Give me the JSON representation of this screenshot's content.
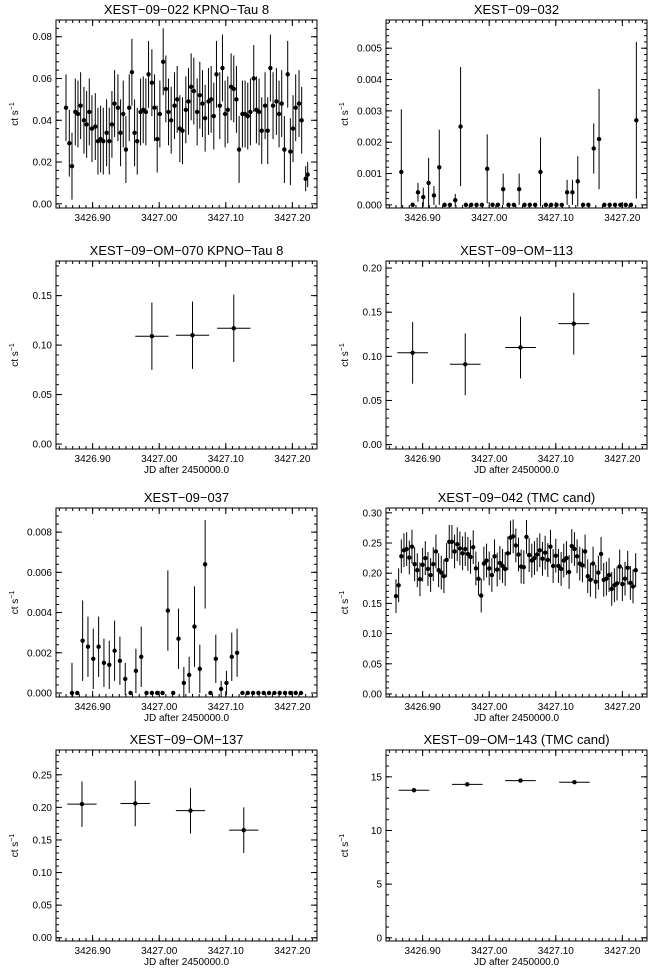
{
  "chart_data": [
    {
      "type": "scatter",
      "title": "XEST−09−022 KPNO−Tau 8",
      "ylabel": "ct s",
      "ylabel_sup": "−1",
      "xlabel": "",
      "xlim": [
        3426.845,
        3427.237
      ],
      "ylim": [
        -0.002,
        0.088
      ],
      "xticks": [
        3426.9,
        3427.0,
        3427.1,
        3427.2
      ],
      "xtick_labels": [
        "3426.90",
        "3427.00",
        "3427.10",
        "3427.20"
      ],
      "yticks": [
        0.0,
        0.02,
        0.04,
        0.06,
        0.08
      ],
      "ytick_labels": [
        "0.00",
        "0.02",
        "0.04",
        "0.06",
        "0.08"
      ],
      "series": [
        {
          "x": [
            3426.86,
            3426.865,
            3426.869,
            3426.874,
            3426.878,
            3426.882,
            3426.887,
            3426.891,
            3426.895,
            3426.899,
            3426.904,
            3426.908,
            3426.912,
            3426.916,
            3426.921,
            3426.925,
            3426.929,
            3426.933,
            3426.938,
            3426.942,
            3426.946,
            3426.95,
            3426.955,
            3426.959,
            3426.963,
            3426.967,
            3426.972,
            3426.976,
            3426.98,
            3426.984,
            3426.989,
            3426.993,
            3426.997,
            3427.001,
            3427.006,
            3427.01,
            3427.014,
            3427.018,
            3427.023,
            3427.027,
            3427.031,
            3427.035,
            3427.04,
            3427.044,
            3427.048,
            3427.052,
            3427.057,
            3427.061,
            3427.065,
            3427.069,
            3427.074,
            3427.078,
            3427.082,
            3427.086,
            3427.091,
            3427.095,
            3427.099,
            3427.103,
            3427.108,
            3427.112,
            3427.116,
            3427.12,
            3427.125,
            3427.129,
            3427.133,
            3427.137,
            3427.142,
            3427.146,
            3427.15,
            3427.154,
            3427.159,
            3427.163,
            3427.167,
            3427.171,
            3427.176,
            3427.18,
            3427.184,
            3427.188,
            3427.193,
            3427.197,
            3427.201,
            3427.205,
            3427.21,
            3427.214
          ],
          "y": [
            0.046,
            0.029,
            0.018,
            0.044,
            0.043,
            0.047,
            0.04,
            0.038,
            0.044,
            0.036,
            0.037,
            0.03,
            0.031,
            0.03,
            0.034,
            0.03,
            0.038,
            0.048,
            0.046,
            0.034,
            0.043,
            0.026,
            0.046,
            0.063,
            0.034,
            0.03,
            0.044,
            0.045,
            0.044,
            0.062,
            0.058,
            0.046,
            0.031,
            0.043,
            0.068,
            0.055,
            0.044,
            0.04,
            0.047,
            0.05,
            0.036,
            0.035,
            0.045,
            0.049,
            0.056,
            0.054,
            0.044,
            0.052,
            0.048,
            0.041,
            0.049,
            0.05,
            0.042,
            0.062,
            0.047,
            0.065,
            0.043,
            0.045,
            0.056,
            0.055,
            0.05,
            0.026,
            0.043,
            0.043,
            0.042,
            0.044,
            0.06,
            0.045,
            0.044,
            0.035,
            0.047,
            0.035,
            0.065,
            0.047,
            0.049,
            0.043,
            0.048,
            0.026,
            0.062,
            0.025,
            0.036,
            0.046,
            0.048,
            0.04
          ],
          "xerr": 0.002,
          "yerr": 0.016
        },
        {
          "x": [
            3427.22,
            3427.223
          ],
          "y": [
            0.012,
            0.014
          ],
          "xerr": 0.001,
          "yerr": 0.006
        }
      ]
    },
    {
      "type": "scatter",
      "title": "XEST−09−032",
      "ylabel": "ct s",
      "ylabel_sup": "−1",
      "xlabel": "",
      "xlim": [
        3426.845,
        3427.237
      ],
      "ylim": [
        -0.0001,
        0.0059
      ],
      "xticks": [
        3426.9,
        3427.0,
        3427.1,
        3427.2
      ],
      "xtick_labels": [
        "3426.90",
        "3427.00",
        "3427.10",
        "3427.20"
      ],
      "yticks": [
        0.0,
        0.001,
        0.002,
        0.003,
        0.004,
        0.005
      ],
      "ytick_labels": [
        "0.000",
        "0.001",
        "0.002",
        "0.003",
        "0.004",
        "0.005"
      ],
      "series": [
        {
          "x": [
            3426.868,
            3426.885,
            3426.893,
            3426.901,
            3426.909,
            3426.917,
            3426.925,
            3426.933,
            3426.941,
            3426.949,
            3426.957,
            3426.965,
            3426.973,
            3426.981,
            3426.989,
            3426.997,
            3427.005,
            3427.013,
            3427.021,
            3427.029,
            3427.037,
            3427.045,
            3427.053,
            3427.061,
            3427.069,
            3427.077,
            3427.085,
            3427.093,
            3427.101,
            3427.109,
            3427.117,
            3427.125,
            3427.133,
            3427.141,
            3427.149,
            3427.157,
            3427.165,
            3427.173,
            3427.181,
            3427.189,
            3427.197,
            3427.205,
            3427.213,
            3427.221
          ],
          "y": [
            0.00105,
            0.0,
            0.0004,
            0.00025,
            0.0007,
            0.0003,
            0.0012,
            0.0,
            0.0,
            0.00015,
            0.0025,
            0.0,
            0.0,
            0.0,
            0.0,
            0.00115,
            0.0,
            0.0,
            0.0005,
            0.0,
            0.0,
            0.0005,
            0.0,
            0.0,
            0.0,
            0.00105,
            0.0,
            0.0,
            0.0,
            0.0,
            0.0004,
            0.0004,
            0.00075,
            0.0,
            0.0,
            0.0018,
            0.0021,
            0.0,
            0.0,
            0.0,
            0.0,
            0.0,
            0.0,
            0.0027
          ],
          "xerr": 0.0,
          "yerr": [
            0.002,
            0,
            0.0003,
            0.0003,
            0.0008,
            0.0003,
            0.0012,
            0,
            0,
            0.0002,
            0.0019,
            0,
            0,
            0,
            0,
            0.0011,
            0,
            0,
            0.0005,
            0,
            0,
            0.0005,
            0,
            0,
            0,
            0.0011,
            0,
            0,
            0,
            0,
            0.0004,
            0.0004,
            0.0008,
            0,
            0,
            0.0008,
            0.0016,
            0,
            0,
            0,
            0,
            0,
            0,
            0.0025
          ]
        }
      ]
    },
    {
      "type": "scatter",
      "title": "XEST−09−OM−070 KPNO−Tau 8",
      "ylabel": "ct s",
      "ylabel_sup": "−1",
      "xlabel": "JD after 2450000.0",
      "xlim": [
        3426.845,
        3427.237
      ],
      "ylim": [
        -0.005,
        0.185
      ],
      "xticks": [
        3426.9,
        3427.0,
        3427.1,
        3427.2
      ],
      "xtick_labels": [
        "3426.90",
        "3427.00",
        "3427.10",
        "3427.20"
      ],
      "yticks": [
        0.0,
        0.05,
        0.1,
        0.15
      ],
      "ytick_labels": [
        "0.00",
        "0.05",
        "0.10",
        "0.15"
      ],
      "series": [
        {
          "x": [
            3426.989,
            3427.05,
            3427.112
          ],
          "y": [
            0.109,
            0.11,
            0.117
          ],
          "xerr": 0.025,
          "yerr": 0.034
        }
      ]
    },
    {
      "type": "scatter",
      "title": "XEST−09−OM−113",
      "ylabel": "ct s",
      "ylabel_sup": "−1",
      "xlabel": "JD after 2450000.0",
      "xlim": [
        3426.845,
        3427.237
      ],
      "ylim": [
        -0.005,
        0.208
      ],
      "xticks": [
        3426.9,
        3427.0,
        3427.1,
        3427.2
      ],
      "xtick_labels": [
        "3426.90",
        "3427.00",
        "3427.10",
        "3427.20"
      ],
      "yticks": [
        0.0,
        0.05,
        0.1,
        0.15,
        0.2
      ],
      "ytick_labels": [
        "0.00",
        "0.05",
        "0.10",
        "0.15",
        "0.20"
      ],
      "series": [
        {
          "x": [
            3426.885,
            3426.964,
            3427.047,
            3427.127
          ],
          "y": [
            0.104,
            0.091,
            0.11,
            0.137
          ],
          "xerr": 0.023,
          "yerr": 0.035
        }
      ]
    },
    {
      "type": "scatter",
      "title": "XEST−09−037",
      "ylabel": "ct s",
      "ylabel_sup": "−1",
      "xlabel": "JD after 2450000.0",
      "xlim": [
        3426.845,
        3427.237
      ],
      "ylim": [
        -0.0002,
        0.0092
      ],
      "xticks": [
        3426.9,
        3427.0,
        3427.1,
        3427.2
      ],
      "xtick_labels": [
        "3426.90",
        "3427.00",
        "3427.10",
        "3427.20"
      ],
      "yticks": [
        0.0,
        0.002,
        0.004,
        0.006,
        0.008
      ],
      "ytick_labels": [
        "0.000",
        "0.002",
        "0.004",
        "0.006",
        "0.008"
      ],
      "series": [
        {
          "x": [
            3426.869,
            3426.877,
            3426.885,
            3426.893,
            3426.901,
            3426.909,
            3426.917,
            3426.925,
            3426.933,
            3426.941,
            3426.949,
            3426.957,
            3426.965,
            3426.973,
            3426.981,
            3426.989,
            3426.997,
            3427.005,
            3427.013,
            3427.021,
            3427.029,
            3427.037,
            3427.045,
            3427.053,
            3427.061,
            3427.069,
            3427.077,
            3427.085,
            3427.093,
            3427.101,
            3427.109,
            3427.117,
            3427.125,
            3427.133,
            3427.141,
            3427.149,
            3427.157,
            3427.165,
            3427.173,
            3427.181,
            3427.189,
            3427.197,
            3427.205,
            3427.213
          ],
          "y": [
            0.0,
            0.0,
            0.0026,
            0.0023,
            0.0017,
            0.0023,
            0.0015,
            0.0014,
            0.0021,
            0.0016,
            0.0007,
            0.0,
            0.0011,
            0.0018,
            0.0,
            0.0,
            0.0,
            0.0,
            0.0041,
            0.0,
            0.0027,
            0.0005,
            0.0009,
            0.0033,
            0.0012,
            0.0064,
            0.0,
            0.0017,
            0.0002,
            0.0005,
            0.0018,
            0.002,
            0.0,
            0.0,
            0.0,
            0.0,
            0.0,
            0.0,
            0.0,
            0.0,
            0.0,
            0.0,
            0.0,
            0.0
          ],
          "xerr": 0.0,
          "yerr": [
            0.0015,
            0,
            0.002,
            0.0015,
            0.0015,
            0.0015,
            0.0012,
            0.0012,
            0.0015,
            0.0012,
            0.0008,
            0,
            0.0011,
            0.0015,
            0,
            0,
            0,
            0,
            0.002,
            0,
            0.0015,
            0.0008,
            0.0009,
            0.002,
            0.0012,
            0.0022,
            0,
            0.0012,
            0.0004,
            0.0006,
            0.0012,
            0.0012,
            0,
            0,
            0,
            0,
            0,
            0,
            0,
            0,
            0,
            0,
            0,
            0
          ]
        }
      ]
    },
    {
      "type": "scatter",
      "title": "XEST−09−042 (TMC cand)",
      "ylabel": "ct s",
      "ylabel_sup": "−1",
      "xlabel": "JD after 2450000.0",
      "xlim": [
        3426.845,
        3427.237
      ],
      "ylim": [
        -0.005,
        0.308
      ],
      "xticks": [
        3426.9,
        3427.0,
        3427.1,
        3427.2
      ],
      "xtick_labels": [
        "3426.90",
        "3427.00",
        "3427.10",
        "3427.20"
      ],
      "yticks": [
        0.0,
        0.05,
        0.1,
        0.15,
        0.2,
        0.25,
        0.3
      ],
      "ytick_labels": [
        "0.00",
        "0.05",
        "0.10",
        "0.15",
        "0.20",
        "0.25",
        "0.30"
      ],
      "series": [
        {
          "x": [
            3426.86,
            3426.864,
            3426.868,
            3426.872,
            3426.876,
            3426.88,
            3426.884,
            3426.888,
            3426.892,
            3426.896,
            3426.9,
            3426.904,
            3426.908,
            3426.912,
            3426.916,
            3426.92,
            3426.924,
            3426.928,
            3426.932,
            3426.936,
            3426.94,
            3426.944,
            3426.948,
            3426.952,
            3426.956,
            3426.96,
            3426.964,
            3426.968,
            3426.972,
            3426.976,
            3426.98,
            3426.984,
            3426.988,
            3426.992,
            3426.996,
            3427.0,
            3427.004,
            3427.008,
            3427.012,
            3427.016,
            3427.02,
            3427.024,
            3427.028,
            3427.032,
            3427.036,
            3427.04,
            3427.044,
            3427.048,
            3427.052,
            3427.056,
            3427.06,
            3427.064,
            3427.068,
            3427.072,
            3427.076,
            3427.08,
            3427.084,
            3427.088,
            3427.092,
            3427.096,
            3427.1,
            3427.104,
            3427.108,
            3427.112,
            3427.116,
            3427.12,
            3427.124,
            3427.128,
            3427.132,
            3427.136,
            3427.14,
            3427.144,
            3427.148,
            3427.152,
            3427.156,
            3427.16,
            3427.164,
            3427.168,
            3427.172,
            3427.176,
            3427.18,
            3427.184,
            3427.188,
            3427.192,
            3427.196,
            3427.2,
            3427.204,
            3427.208,
            3427.212,
            3427.216,
            3427.22
          ],
          "y": [
            0.162,
            0.18,
            0.228,
            0.238,
            0.24,
            0.226,
            0.244,
            0.215,
            0.205,
            0.19,
            0.214,
            0.225,
            0.207,
            0.197,
            0.215,
            0.236,
            0.205,
            0.201,
            0.195,
            0.222,
            0.252,
            0.252,
            0.236,
            0.248,
            0.241,
            0.233,
            0.24,
            0.232,
            0.227,
            0.243,
            0.208,
            0.191,
            0.163,
            0.216,
            0.221,
            0.208,
            0.197,
            0.228,
            0.206,
            0.217,
            0.212,
            0.207,
            0.233,
            0.259,
            0.261,
            0.246,
            0.231,
            0.211,
            0.21,
            0.26,
            0.23,
            0.221,
            0.225,
            0.231,
            0.238,
            0.224,
            0.234,
            0.222,
            0.244,
            0.212,
            0.229,
            0.212,
            0.207,
            0.221,
            0.225,
            0.202,
            0.245,
            0.24,
            0.228,
            0.216,
            0.213,
            0.236,
            0.195,
            0.189,
            0.216,
            0.186,
            0.201,
            0.232,
            0.189,
            0.191,
            0.197,
            0.174,
            0.18,
            0.183,
            0.211,
            0.182,
            0.191,
            0.209,
            0.184,
            0.178,
            0.205
          ],
          "xerr": 0.0015,
          "yerr": 0.028
        }
      ]
    },
    {
      "type": "scatter",
      "title": "XEST−09−OM−137",
      "ylabel": "ct s",
      "ylabel_sup": "−1",
      "xlabel": "JD after 2450000.0",
      "xlim": [
        3426.845,
        3427.237
      ],
      "ylim": [
        -0.005,
        0.288
      ],
      "xticks": [
        3426.9,
        3427.0,
        3427.1,
        3427.2
      ],
      "xtick_labels": [
        "3426.90",
        "3427.00",
        "3427.10",
        "3427.20"
      ],
      "yticks": [
        0.0,
        0.05,
        0.1,
        0.15,
        0.2,
        0.25
      ],
      "ytick_labels": [
        "0.00",
        "0.05",
        "0.10",
        "0.15",
        "0.20",
        "0.25"
      ],
      "series": [
        {
          "x": [
            3426.884,
            3426.964,
            3427.047,
            3427.127
          ],
          "y": [
            0.205,
            0.206,
            0.195,
            0.165
          ],
          "xerr": 0.022,
          "yerr": 0.035
        }
      ]
    },
    {
      "type": "scatter",
      "title": "XEST−09−OM−143 (TMC cand)",
      "ylabel": "ct s",
      "ylabel_sup": "−1",
      "xlabel": "JD after 2450000.0",
      "xlim": [
        3426.845,
        3427.237
      ],
      "ylim": [
        -0.3,
        17.5
      ],
      "xticks": [
        3426.9,
        3427.0,
        3427.1,
        3427.2
      ],
      "xtick_labels": [
        "3426.90",
        "3427.00",
        "3427.10",
        "3427.20"
      ],
      "yticks": [
        0,
        5,
        10,
        15
      ],
      "ytick_labels": [
        "0",
        "5",
        "10",
        "15"
      ],
      "series": [
        {
          "x": [
            3426.887,
            3426.967,
            3427.047,
            3427.128
          ],
          "y": [
            13.75,
            14.3,
            14.65,
            14.5
          ],
          "xerr": 0.023,
          "yerr": 0.06
        }
      ]
    }
  ]
}
